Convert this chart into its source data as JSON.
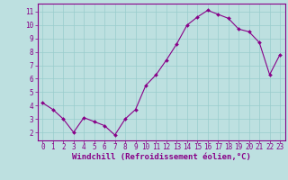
{
  "x": [
    0,
    1,
    2,
    3,
    4,
    5,
    6,
    7,
    8,
    9,
    10,
    11,
    12,
    13,
    14,
    15,
    16,
    17,
    18,
    19,
    20,
    21,
    22,
    23
  ],
  "y": [
    4.2,
    3.7,
    3.0,
    2.0,
    3.1,
    2.8,
    2.5,
    1.8,
    3.0,
    3.7,
    5.5,
    6.3,
    7.4,
    8.6,
    10.0,
    10.6,
    11.1,
    10.8,
    10.5,
    9.7,
    9.5,
    8.7,
    6.3,
    7.8
  ],
  "line_color": "#880088",
  "marker_color": "#880088",
  "bg_color": "#bde0e0",
  "grid_color": "#99cccc",
  "xlabel": "Windchill (Refroidissement éolien,°C)",
  "xlabel_color": "#880088",
  "ylabel_ticks": [
    2,
    3,
    4,
    5,
    6,
    7,
    8,
    9,
    10,
    11
  ],
  "xlim": [
    -0.5,
    23.5
  ],
  "ylim": [
    1.4,
    11.6
  ],
  "xtick_labels": [
    "0",
    "1",
    "2",
    "3",
    "4",
    "5",
    "6",
    "7",
    "8",
    "9",
    "10",
    "11",
    "12",
    "13",
    "14",
    "15",
    "16",
    "17",
    "18",
    "19",
    "20",
    "21",
    "22",
    "23"
  ],
  "tick_fontsize": 5.5,
  "xlabel_fontsize": 6.5,
  "tick_color": "#880088",
  "spine_color": "#880088",
  "line_width": 0.8,
  "marker_size": 2.0
}
